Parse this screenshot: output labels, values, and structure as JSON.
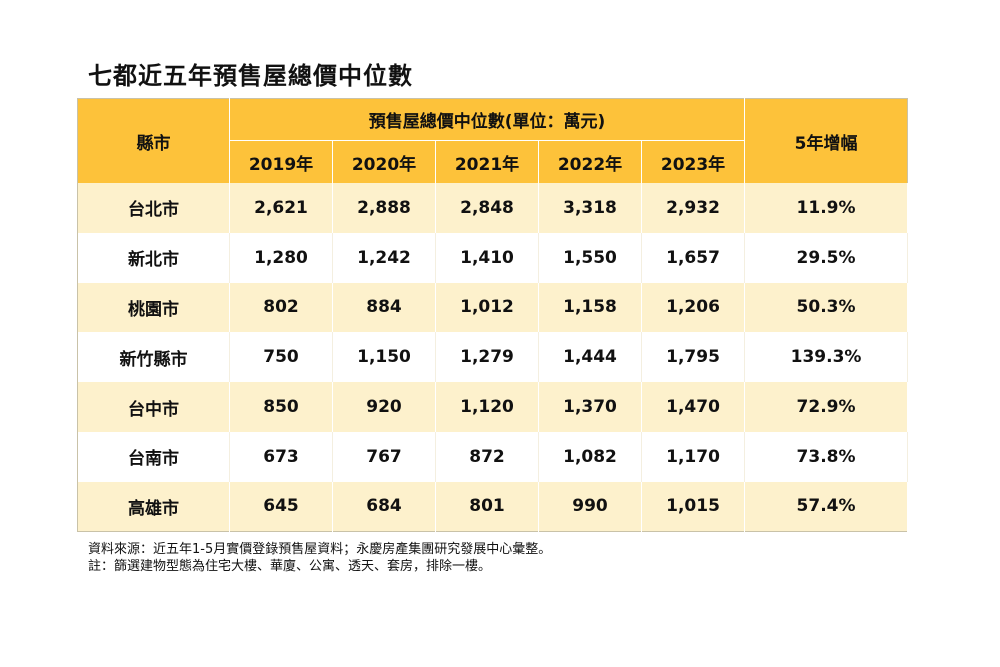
{
  "title": "七都近五年預售屋總價中位數",
  "chart_data": {
    "type": "table",
    "title": "七都近五年預售屋總價中位數",
    "header": {
      "city": "縣市",
      "group": "預售屋總價中位數(單位：萬元)",
      "years": [
        "2019年",
        "2020年",
        "2021年",
        "2022年",
        "2023年"
      ],
      "growth": "5年增幅"
    },
    "rows": [
      {
        "city": "台北市",
        "values": [
          "2,621",
          "2,888",
          "2,848",
          "3,318",
          "2,932"
        ],
        "growth": "11.9%"
      },
      {
        "city": "新北市",
        "values": [
          "1,280",
          "1,242",
          "1,410",
          "1,550",
          "1,657"
        ],
        "growth": "29.5%"
      },
      {
        "city": "桃園市",
        "values": [
          "802",
          "884",
          "1,012",
          "1,158",
          "1,206"
        ],
        "growth": "50.3%"
      },
      {
        "city": "新竹縣市",
        "values": [
          "750",
          "1,150",
          "1,279",
          "1,444",
          "1,795"
        ],
        "growth": "139.3%"
      },
      {
        "city": "台中市",
        "values": [
          "850",
          "920",
          "1,120",
          "1,370",
          "1,470"
        ],
        "growth": "72.9%"
      },
      {
        "city": "台南市",
        "values": [
          "673",
          "767",
          "872",
          "1,082",
          "1,170"
        ],
        "growth": "73.8%"
      },
      {
        "city": "高雄市",
        "values": [
          "645",
          "684",
          "801",
          "990",
          "1,015"
        ],
        "growth": "57.4%"
      }
    ]
  },
  "notes": [
    "資料來源：近五年1-5月實價登錄預售屋資料；永慶房產集團研究發展中心彙整。",
    "註：篩選建物型態為住宅大樓、華廈、公寓、透天、套房，排除一樓。"
  ],
  "colors": {
    "header": "#fdc23a",
    "row_odd": "#fdf1cc",
    "row_even": "#ffffff"
  }
}
